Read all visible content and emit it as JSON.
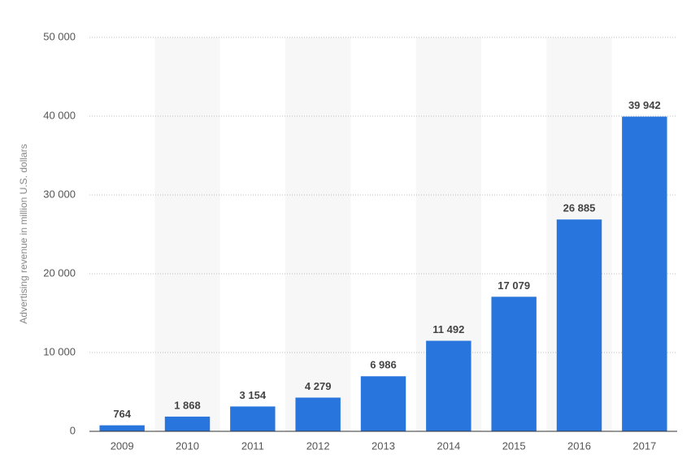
{
  "chart_data": {
    "type": "bar",
    "y_axis_label": "Advertising revenue in million U.S. dollars",
    "categories": [
      "2009",
      "2010",
      "2011",
      "2012",
      "2013",
      "2014",
      "2015",
      "2016",
      "2017"
    ],
    "values": [
      764,
      1868,
      3154,
      4279,
      6986,
      11492,
      17079,
      26885,
      39942
    ],
    "value_labels": [
      "764",
      "1 868",
      "3 154",
      "4 279",
      "6 986",
      "11 492",
      "17 079",
      "26 885",
      "39 942"
    ],
    "color": "#2876dd",
    "ylim": [
      0,
      50000
    ],
    "yticks": [
      0,
      {
        "value": 10000,
        "label": "10 000"
      },
      {
        "value": 20000,
        "label": "20 000"
      },
      {
        "value": 30000,
        "label": "30 000"
      },
      {
        "value": 40000,
        "label": "40 000"
      },
      {
        "value": 50000,
        "label": "50 000"
      }
    ],
    "grid": true
  }
}
